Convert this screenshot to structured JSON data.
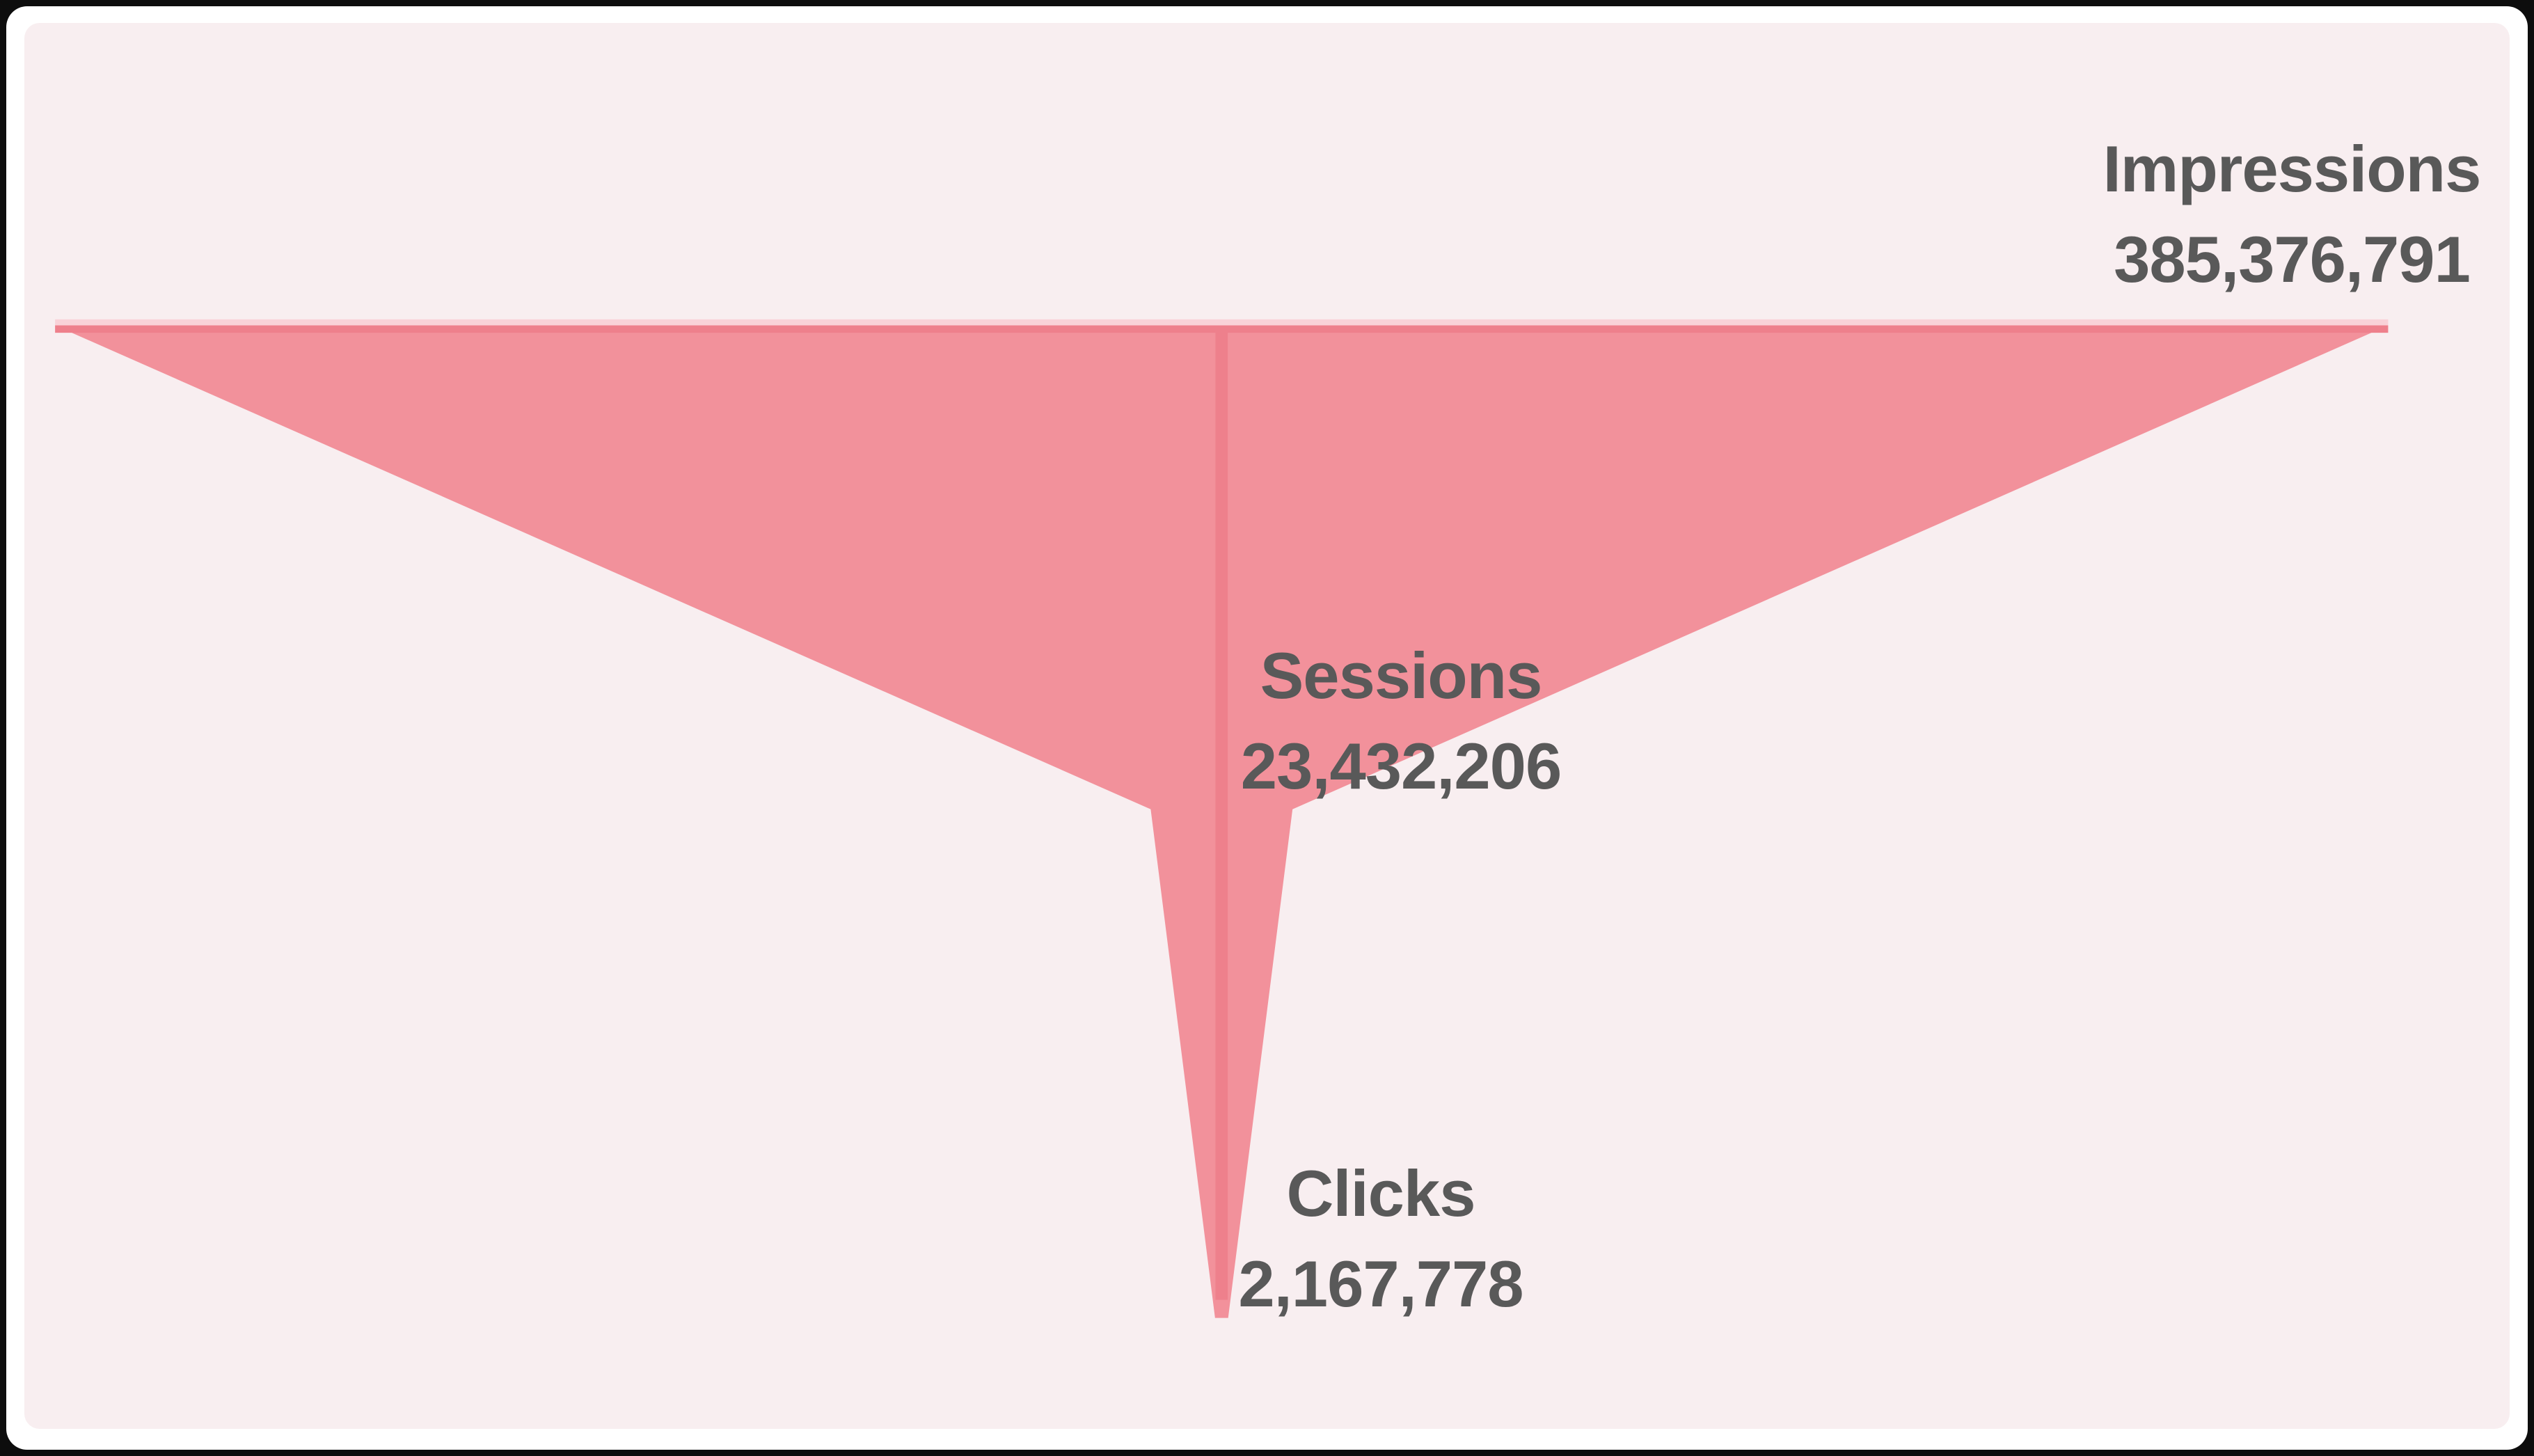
{
  "chart_data": {
    "type": "funnel",
    "orientation": "vertical, widest stage at top, tapering to a narrow spike at bottom",
    "stages": [
      {
        "label": "Impressions",
        "value": 385376791,
        "value_display": "385,376,791"
      },
      {
        "label": "Sessions",
        "value": 23432206,
        "value_display": "23,432,206"
      },
      {
        "label": "Clicks",
        "value": 2167778,
        "value_display": "2,167,778"
      }
    ],
    "legend": "none",
    "axes": "none",
    "colors": {
      "funnel_fill": "#f2919b",
      "funnel_edge_dark": "#ee808c",
      "funnel_edge_light": "#f9d2d8",
      "card_background": "#f8eef0",
      "frame_background": "#ffffff",
      "outer_border": "#0d0d0d",
      "label_text": "#595959"
    },
    "layout_hint": "stage widths proportional to values; labels with values sit above each stage boundary; Impressions label top-right, Sessions label mid-center, Clicks label lower-center"
  }
}
